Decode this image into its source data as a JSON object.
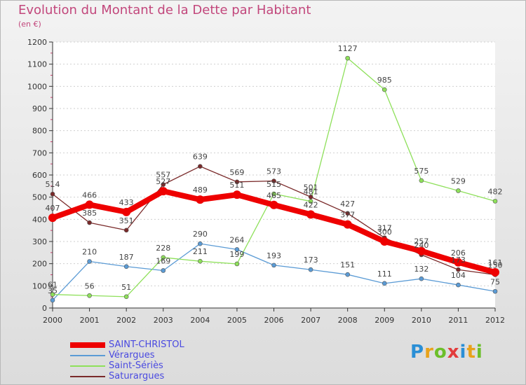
{
  "chart_data": {
    "type": "line",
    "title": "Evolution du Montant de la Dette par Habitant",
    "subtitle": "(en €)",
    "x": [
      "2000",
      "2001",
      "2002",
      "2003",
      "2004",
      "2005",
      "2006",
      "2007",
      "2008",
      "2009",
      "2010",
      "2011",
      "2012"
    ],
    "ylim": [
      0,
      1200
    ],
    "yticks": [
      0,
      100,
      200,
      300,
      400,
      500,
      600,
      700,
      800,
      900,
      1000,
      1100,
      1200
    ],
    "grid": "horizontal-dashed",
    "legend_position": "bottom-left",
    "series": [
      {
        "name": "SAINT-CHRISTOL",
        "color": "#ee0000",
        "values": [
          407,
          466,
          433,
          527,
          489,
          511,
          465,
          422,
          377,
          300,
          257,
          206,
          161
        ]
      },
      {
        "name": "Vérargues",
        "color": "#5b9bd5",
        "values": [
          35,
          210,
          187,
          169,
          290,
          264,
          193,
          173,
          151,
          111,
          132,
          104,
          75
        ]
      },
      {
        "name": "Saint-Sériès",
        "color": "#8ee05a",
        "values": [
          61,
          56,
          51,
          228,
          211,
          199,
          515,
          481,
          1127,
          985,
          575,
          529,
          482
        ]
      },
      {
        "name": "Saturargues",
        "color": "#7a2a2a",
        "values": [
          514,
          385,
          351,
          557,
          639,
          569,
          573,
          501,
          427,
          317,
          240,
          173,
          150
        ]
      }
    ]
  },
  "logo": {
    "letters": [
      "P",
      "r",
      "o",
      "x",
      "i",
      "t",
      "i"
    ],
    "colors": [
      "#2a8fd6",
      "#e8a21a",
      "#6cbf2a",
      "#e23c3c",
      "#2a8fd6",
      "#e8a21a",
      "#6cbf2a"
    ]
  }
}
